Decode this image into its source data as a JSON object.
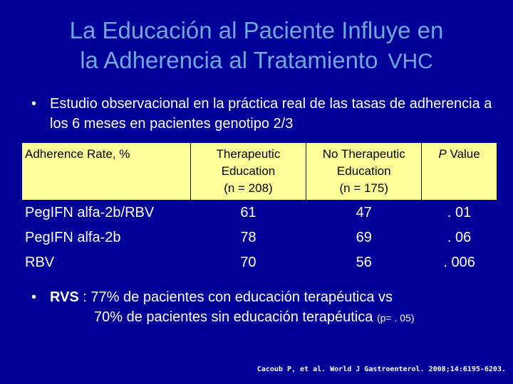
{
  "title": {
    "line1": "La Educación al Paciente Influye en",
    "line2": "la Adherencia al Tratamiento",
    "suffix": "VHC"
  },
  "bullet1": "Estudio observacional en la práctica real de las tasas de adherencia a los 6 meses en pacientes genotipo 2/3",
  "table": {
    "headers": {
      "col1": "Adherence Rate, %",
      "col2_line1": "Therapeutic",
      "col2_line2": "Education",
      "col2_line3": "(n = 208)",
      "col3_line1": "No Therapeutic",
      "col3_line2": "Education",
      "col3_line3": "(n = 175)",
      "col4_italic": "P",
      "col4_rest": " Value"
    },
    "rows": [
      {
        "label": "PegIFN alfa-2b/RBV",
        "te": "61",
        "nte": "47",
        "p": ". 01"
      },
      {
        "label": "PegIFN alfa-2b",
        "te": "78",
        "nte": "69",
        "p": ". 06"
      },
      {
        "label": "RBV",
        "te": "70",
        "nte": "56",
        "p": ". 006"
      }
    ]
  },
  "bullet2": {
    "bold": "RVS",
    "line1_rest": " : 77% de pacientes con educación terapéutica vs",
    "line2": "70% de pacientes sin educación terapéutica",
    "pvalue": "(p= . 05)"
  },
  "reference": "Cacoub P, et al. World J Gastroenterol. 2008;14:6195-6203.",
  "colors": {
    "background": "#000099",
    "title": "#6fa8dc",
    "table_header": "#ffff99",
    "text": "#ffffff"
  }
}
